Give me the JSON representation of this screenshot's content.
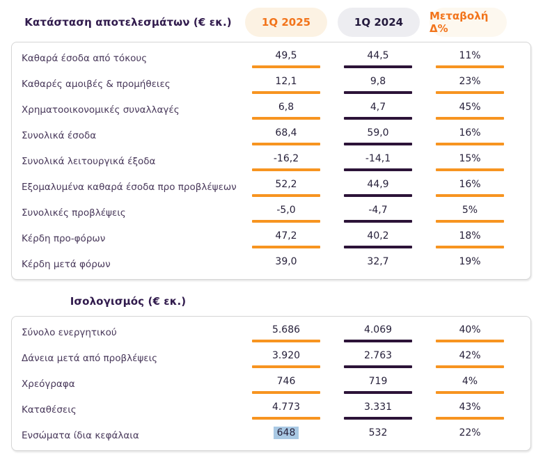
{
  "colors": {
    "orange_text": "#F2741B",
    "orange_bar": "#F79420",
    "purple_bar": "#2C1338",
    "purple_text": "#241A3D",
    "heading": "#311B4D",
    "label": "#473759",
    "value": "#241E38",
    "card_border": "#D5D5D5",
    "pill_2025_bg": "#FCF2E3",
    "pill_2024_bg": "#EDEDF1",
    "pill_change_bg": "#FDF8EF",
    "highlight": "#A9C9E4"
  },
  "header": {
    "columns": [
      {
        "label": "1Q 2025"
      },
      {
        "label": "1Q 2024"
      },
      {
        "label": "Μεταβολή Δ%"
      }
    ]
  },
  "income_statement": {
    "title": "Κατάσταση αποτελεσμάτων (€ εκ.)",
    "rows": [
      {
        "label": "Καθαρά έσοδα από τόκους",
        "q1_2025": "49,5",
        "q1_2024": "44,5",
        "change": "11%",
        "underline": true
      },
      {
        "label": "Καθαρές αμοιβές & προμήθειες",
        "q1_2025": "12,1",
        "q1_2024": "9,8",
        "change": "23%",
        "underline": true
      },
      {
        "label": "Χρηματοοικονομικές συναλλαγές",
        "q1_2025": "6,8",
        "q1_2024": "4,7",
        "change": "45%",
        "underline": true
      },
      {
        "label": "Συνολικά έσοδα",
        "q1_2025": "68,4",
        "q1_2024": "59,0",
        "change": "16%",
        "underline": true
      },
      {
        "label": "Συνολικά λειτουργικά έξοδα",
        "q1_2025": "-16,2",
        "q1_2024": "-14,1",
        "change": "15%",
        "underline": true
      },
      {
        "label": "Εξομαλυμένα καθαρά έσοδα προ προβλέψεων",
        "q1_2025": "52,2",
        "q1_2024": "44,9",
        "change": "16%",
        "underline": true
      },
      {
        "label": "Συνολικές προβλέψεις",
        "q1_2025": "-5,0",
        "q1_2024": "-4,7",
        "change": "5%",
        "underline": true
      },
      {
        "label": "Κέρδη προ-φόρων",
        "q1_2025": "47,2",
        "q1_2024": "40,2",
        "change": "18%",
        "underline": true
      },
      {
        "label": "Κέρδη μετά φόρων",
        "q1_2025": "39,0",
        "q1_2024": "32,7",
        "change": "19%",
        "underline": false
      }
    ]
  },
  "balance_sheet": {
    "title": "Ισολογισμός (€ εκ.)",
    "rows": [
      {
        "label": "Σύνολο ενεργητικού",
        "q1_2025": "5.686",
        "q1_2024": "4.069",
        "change": "40%",
        "underline": true
      },
      {
        "label": "Δάνεια μετά από προβλέψεις",
        "q1_2025": "3.920",
        "q1_2024": "2.763",
        "change": "42%",
        "underline": true
      },
      {
        "label": "Χρεόγραφα",
        "q1_2025": "746",
        "q1_2024": "719",
        "change": "4%",
        "underline": true
      },
      {
        "label": "Καταθέσεις",
        "q1_2025": "4.773",
        "q1_2024": "3.331",
        "change": "43%",
        "underline": true
      },
      {
        "label": "Ενσώματα ίδια κεφάλαια",
        "q1_2025": "648",
        "q1_2024": "532",
        "change": "22%",
        "underline": false,
        "highlighted": "q1_2025"
      }
    ]
  },
  "chart_data": [
    {
      "type": "table",
      "title": "Κατάσταση αποτελεσμάτων (€ εκ.)",
      "columns": [
        "",
        "1Q 2025",
        "1Q 2024",
        "Μεταβολή Δ%"
      ],
      "rows": [
        [
          "Καθαρά έσοδα από τόκους",
          49.5,
          44.5,
          "11%"
        ],
        [
          "Καθαρές αμοιβές & προμήθειες",
          12.1,
          9.8,
          "23%"
        ],
        [
          "Χρηματοοικονομικές συναλλαγές",
          6.8,
          4.7,
          "45%"
        ],
        [
          "Συνολικά έσοδα",
          68.4,
          59.0,
          "16%"
        ],
        [
          "Συνολικά λειτουργικά έξοδα",
          -16.2,
          -14.1,
          "15%"
        ],
        [
          "Εξομαλυμένα καθαρά έσοδα προ προβλέψεων",
          52.2,
          44.9,
          "16%"
        ],
        [
          "Συνολικές προβλέψεις",
          -5.0,
          -4.7,
          "5%"
        ],
        [
          "Κέρδη προ-φόρων",
          47.2,
          40.2,
          "18%"
        ],
        [
          "Κέρδη μετά φόρων",
          39.0,
          32.7,
          "19%"
        ]
      ]
    },
    {
      "type": "table",
      "title": "Ισολογισμός (€ εκ.)",
      "columns": [
        "",
        "1Q 2025",
        "1Q 2024",
        "Μεταβολή Δ%"
      ],
      "rows": [
        [
          "Σύνολο ενεργητικού",
          5686,
          4069,
          "40%"
        ],
        [
          "Δάνεια μετά από προβλέψεις",
          3920,
          2763,
          "42%"
        ],
        [
          "Χρεόγραφα",
          746,
          719,
          "4%"
        ],
        [
          "Καταθέσεις",
          4773,
          3331,
          "43%"
        ],
        [
          "Ενσώματα ίδια κεφάλαια",
          648,
          532,
          "22%"
        ]
      ]
    }
  ]
}
